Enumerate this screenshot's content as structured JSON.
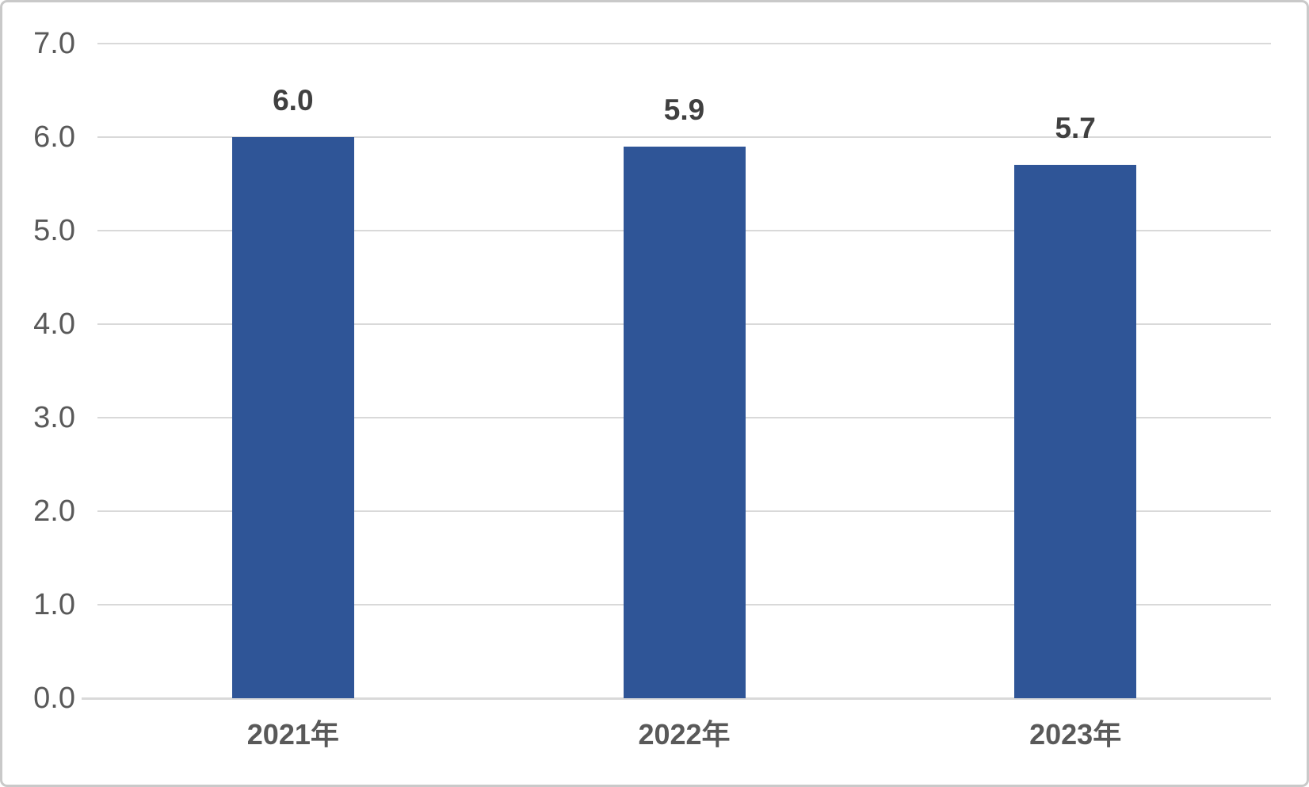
{
  "chart_data": {
    "type": "bar",
    "categories": [
      "2021年",
      "2022年",
      "2023年"
    ],
    "values": [
      6.0,
      5.9,
      5.7
    ],
    "data_labels": [
      "6.0",
      "5.9",
      "5.7"
    ],
    "yticks": [
      "0.0",
      "1.0",
      "2.0",
      "3.0",
      "4.0",
      "5.0",
      "6.0",
      "7.0"
    ],
    "ylim": [
      0,
      7
    ],
    "title": "",
    "xlabel": "",
    "ylabel": "",
    "grid": true,
    "legend": false,
    "layout_hints": {
      "gridlines": "horizontal only, every 1.0",
      "data_labels_position": "above bar tops",
      "bar_series_count": 1
    },
    "colors": {
      "bar": "#2F5597",
      "gridline": "#D9D9D9",
      "axis_line": "#D9D9D9",
      "tick_label": "#595959",
      "data_label": "#404040",
      "category_label": "#595959",
      "background": "#FFFFFF",
      "border": "#C9C9C9"
    }
  }
}
